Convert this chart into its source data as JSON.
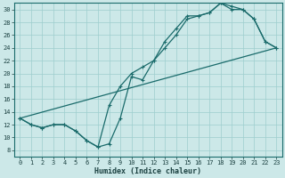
{
  "xlabel": "Humidex (Indice chaleur)",
  "xlim": [
    -0.5,
    23.5
  ],
  "ylim": [
    7,
    31
  ],
  "yticks": [
    8,
    10,
    12,
    14,
    16,
    18,
    20,
    22,
    24,
    26,
    28,
    30
  ],
  "xticks": [
    0,
    1,
    2,
    3,
    4,
    5,
    6,
    7,
    8,
    9,
    10,
    11,
    12,
    13,
    14,
    15,
    16,
    17,
    18,
    19,
    20,
    21,
    22,
    23
  ],
  "bg_color": "#cce8e8",
  "line_color": "#1a6b6b",
  "grid_color": "#9ecece",
  "line1_x": [
    0,
    1,
    2,
    3,
    4,
    5,
    6,
    7,
    8,
    9,
    10,
    11,
    12,
    13,
    14,
    15,
    16,
    17,
    18,
    19,
    20,
    21,
    22,
    23
  ],
  "line1_y": [
    13,
    12,
    11.5,
    12,
    12,
    11,
    9.5,
    8.5,
    9,
    13,
    19.5,
    19,
    22,
    25,
    27,
    29,
    29,
    29.5,
    31,
    30,
    30,
    28.5,
    25,
    24
  ],
  "line2_x": [
    0,
    1,
    2,
    3,
    4,
    5,
    6,
    7,
    8,
    9,
    10,
    11,
    12,
    13,
    14,
    15,
    16,
    17,
    18,
    19,
    20,
    21,
    22,
    23
  ],
  "line2_y": [
    13,
    12,
    11.5,
    12,
    12,
    11,
    9.5,
    8.5,
    15,
    18,
    20,
    21,
    22,
    24,
    26,
    28.5,
    29,
    29.5,
    31,
    30.5,
    30,
    28.5,
    25,
    24
  ],
  "line3_x": [
    0,
    23
  ],
  "line3_y": [
    13,
    24
  ]
}
